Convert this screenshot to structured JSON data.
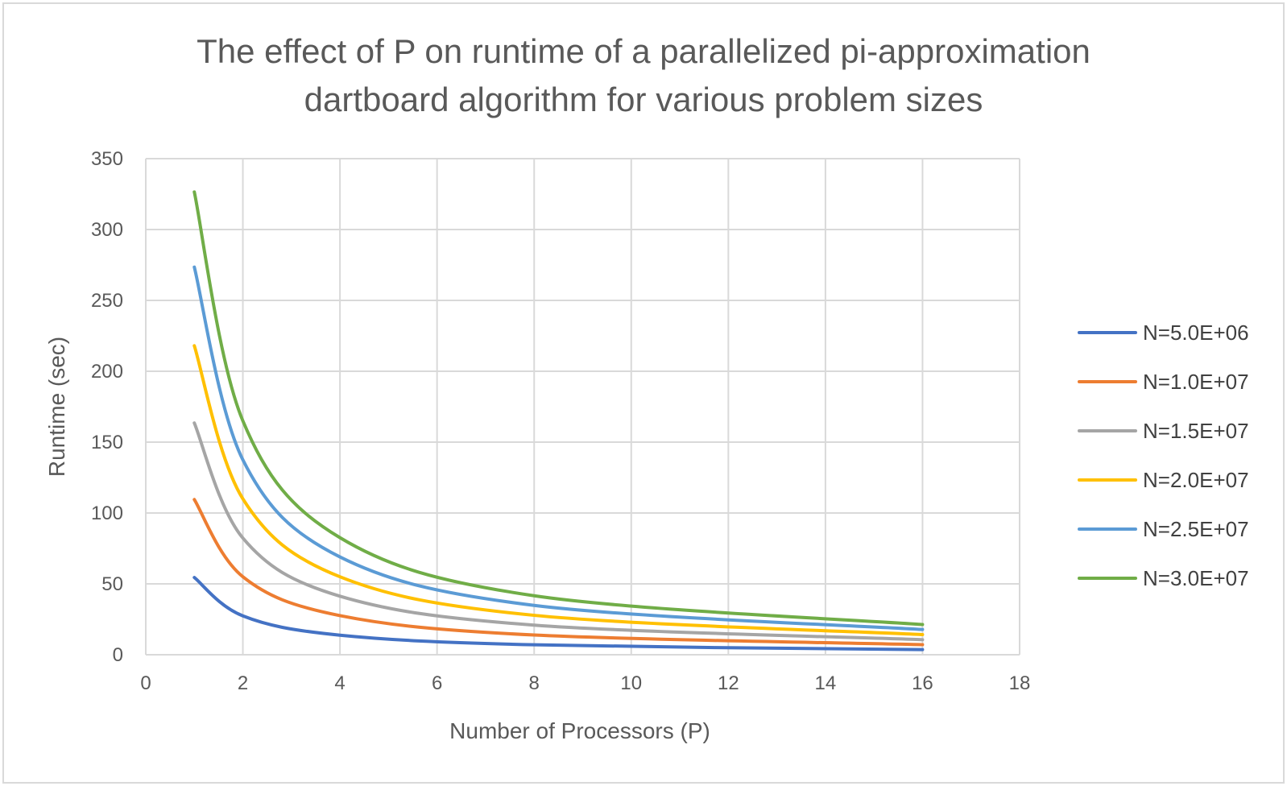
{
  "chart_data": {
    "type": "line",
    "title_lines": [
      "The effect of P on runtime of a parallelized pi-approximation",
      "dartboard algorithm for various problem sizes"
    ],
    "xlabel": "Number of Processors (P)",
    "ylabel": "Runtime (sec)",
    "xlim": [
      0,
      18
    ],
    "ylim": [
      0,
      350
    ],
    "xticks": [
      "0",
      "2",
      "4",
      "6",
      "8",
      "10",
      "12",
      "14",
      "16",
      "18"
    ],
    "yticks": [
      "0",
      "50",
      "100",
      "150",
      "200",
      "250",
      "300",
      "350"
    ],
    "grid": true,
    "legend_position": "right",
    "x": [
      1,
      2,
      4,
      8,
      16
    ],
    "series": [
      {
        "name": "N=5.0E+06",
        "color": "#4472C4",
        "values": [
          54.5,
          27.4,
          13.8,
          7.0,
          3.6
        ]
      },
      {
        "name": "N=1.0E+07",
        "color": "#ED7D31",
        "values": [
          109.5,
          55.0,
          27.6,
          13.9,
          7.1
        ]
      },
      {
        "name": "N=1.5E+07",
        "color": "#A5A5A5",
        "values": [
          163.5,
          82.3,
          41.3,
          20.9,
          10.6
        ]
      },
      {
        "name": "N=2.0E+07",
        "color": "#FFC000",
        "values": [
          218.0,
          110.0,
          55.0,
          27.8,
          14.2
        ]
      },
      {
        "name": "N=2.5E+07",
        "color": "#5B9BD5",
        "values": [
          273.5,
          137.5,
          69.0,
          34.8,
          17.8
        ]
      },
      {
        "name": "N=3.0E+07",
        "color": "#70AD47",
        "values": [
          326.5,
          165.0,
          82.6,
          41.6,
          21.3
        ]
      }
    ]
  }
}
